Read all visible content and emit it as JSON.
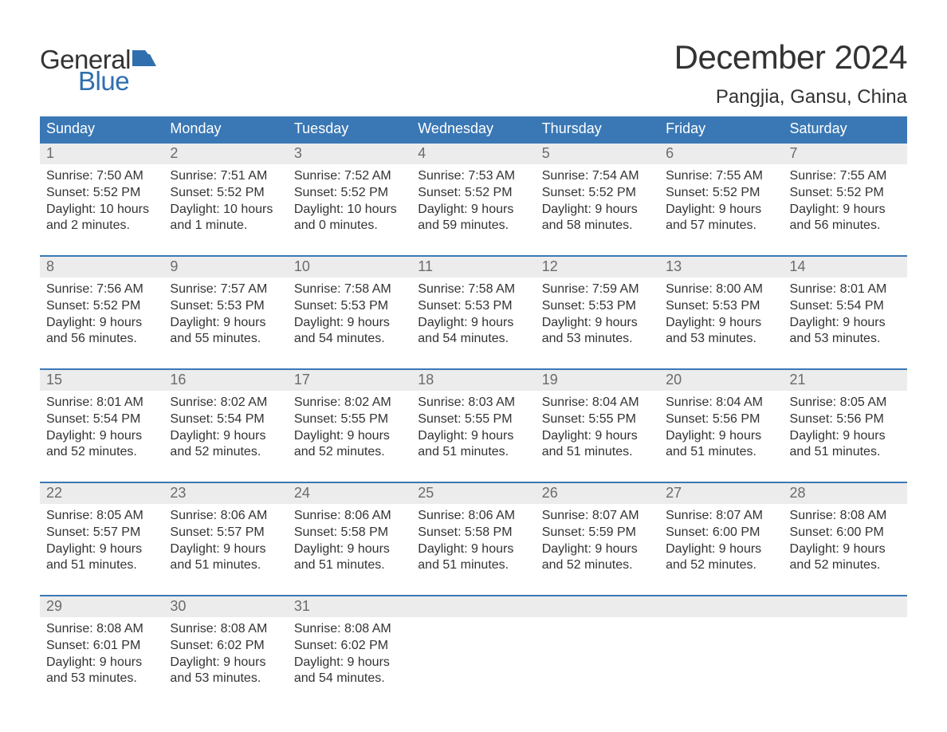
{
  "brand": {
    "word1": "General",
    "word2": "Blue",
    "flag_color": "#2f6fae",
    "text_dark": "#333333"
  },
  "title": "December 2024",
  "location": "Pangjia, Gansu, China",
  "colors": {
    "header_bg": "#3a78b5",
    "header_text": "#ffffff",
    "row_border": "#3a78b5",
    "daynum_bg": "#ececec",
    "daynum_text": "#6b6b6b",
    "body_text": "#333333",
    "page_bg": "#ffffff"
  },
  "typography": {
    "title_fontsize": 42,
    "location_fontsize": 24,
    "dayhead_fontsize": 18,
    "daynum_fontsize": 18,
    "body_fontsize": 16
  },
  "day_headers": [
    "Sunday",
    "Monday",
    "Tuesday",
    "Wednesday",
    "Thursday",
    "Friday",
    "Saturday"
  ],
  "weeks": [
    [
      {
        "num": "1",
        "sunrise": "Sunrise: 7:50 AM",
        "sunset": "Sunset: 5:52 PM",
        "day1": "Daylight: 10 hours",
        "day2": "and 2 minutes."
      },
      {
        "num": "2",
        "sunrise": "Sunrise: 7:51 AM",
        "sunset": "Sunset: 5:52 PM",
        "day1": "Daylight: 10 hours",
        "day2": "and 1 minute."
      },
      {
        "num": "3",
        "sunrise": "Sunrise: 7:52 AM",
        "sunset": "Sunset: 5:52 PM",
        "day1": "Daylight: 10 hours",
        "day2": "and 0 minutes."
      },
      {
        "num": "4",
        "sunrise": "Sunrise: 7:53 AM",
        "sunset": "Sunset: 5:52 PM",
        "day1": "Daylight: 9 hours",
        "day2": "and 59 minutes."
      },
      {
        "num": "5",
        "sunrise": "Sunrise: 7:54 AM",
        "sunset": "Sunset: 5:52 PM",
        "day1": "Daylight: 9 hours",
        "day2": "and 58 minutes."
      },
      {
        "num": "6",
        "sunrise": "Sunrise: 7:55 AM",
        "sunset": "Sunset: 5:52 PM",
        "day1": "Daylight: 9 hours",
        "day2": "and 57 minutes."
      },
      {
        "num": "7",
        "sunrise": "Sunrise: 7:55 AM",
        "sunset": "Sunset: 5:52 PM",
        "day1": "Daylight: 9 hours",
        "day2": "and 56 minutes."
      }
    ],
    [
      {
        "num": "8",
        "sunrise": "Sunrise: 7:56 AM",
        "sunset": "Sunset: 5:52 PM",
        "day1": "Daylight: 9 hours",
        "day2": "and 56 minutes."
      },
      {
        "num": "9",
        "sunrise": "Sunrise: 7:57 AM",
        "sunset": "Sunset: 5:53 PM",
        "day1": "Daylight: 9 hours",
        "day2": "and 55 minutes."
      },
      {
        "num": "10",
        "sunrise": "Sunrise: 7:58 AM",
        "sunset": "Sunset: 5:53 PM",
        "day1": "Daylight: 9 hours",
        "day2": "and 54 minutes."
      },
      {
        "num": "11",
        "sunrise": "Sunrise: 7:58 AM",
        "sunset": "Sunset: 5:53 PM",
        "day1": "Daylight: 9 hours",
        "day2": "and 54 minutes."
      },
      {
        "num": "12",
        "sunrise": "Sunrise: 7:59 AM",
        "sunset": "Sunset: 5:53 PM",
        "day1": "Daylight: 9 hours",
        "day2": "and 53 minutes."
      },
      {
        "num": "13",
        "sunrise": "Sunrise: 8:00 AM",
        "sunset": "Sunset: 5:53 PM",
        "day1": "Daylight: 9 hours",
        "day2": "and 53 minutes."
      },
      {
        "num": "14",
        "sunrise": "Sunrise: 8:01 AM",
        "sunset": "Sunset: 5:54 PM",
        "day1": "Daylight: 9 hours",
        "day2": "and 53 minutes."
      }
    ],
    [
      {
        "num": "15",
        "sunrise": "Sunrise: 8:01 AM",
        "sunset": "Sunset: 5:54 PM",
        "day1": "Daylight: 9 hours",
        "day2": "and 52 minutes."
      },
      {
        "num": "16",
        "sunrise": "Sunrise: 8:02 AM",
        "sunset": "Sunset: 5:54 PM",
        "day1": "Daylight: 9 hours",
        "day2": "and 52 minutes."
      },
      {
        "num": "17",
        "sunrise": "Sunrise: 8:02 AM",
        "sunset": "Sunset: 5:55 PM",
        "day1": "Daylight: 9 hours",
        "day2": "and 52 minutes."
      },
      {
        "num": "18",
        "sunrise": "Sunrise: 8:03 AM",
        "sunset": "Sunset: 5:55 PM",
        "day1": "Daylight: 9 hours",
        "day2": "and 51 minutes."
      },
      {
        "num": "19",
        "sunrise": "Sunrise: 8:04 AM",
        "sunset": "Sunset: 5:55 PM",
        "day1": "Daylight: 9 hours",
        "day2": "and 51 minutes."
      },
      {
        "num": "20",
        "sunrise": "Sunrise: 8:04 AM",
        "sunset": "Sunset: 5:56 PM",
        "day1": "Daylight: 9 hours",
        "day2": "and 51 minutes."
      },
      {
        "num": "21",
        "sunrise": "Sunrise: 8:05 AM",
        "sunset": "Sunset: 5:56 PM",
        "day1": "Daylight: 9 hours",
        "day2": "and 51 minutes."
      }
    ],
    [
      {
        "num": "22",
        "sunrise": "Sunrise: 8:05 AM",
        "sunset": "Sunset: 5:57 PM",
        "day1": "Daylight: 9 hours",
        "day2": "and 51 minutes."
      },
      {
        "num": "23",
        "sunrise": "Sunrise: 8:06 AM",
        "sunset": "Sunset: 5:57 PM",
        "day1": "Daylight: 9 hours",
        "day2": "and 51 minutes."
      },
      {
        "num": "24",
        "sunrise": "Sunrise: 8:06 AM",
        "sunset": "Sunset: 5:58 PM",
        "day1": "Daylight: 9 hours",
        "day2": "and 51 minutes."
      },
      {
        "num": "25",
        "sunrise": "Sunrise: 8:06 AM",
        "sunset": "Sunset: 5:58 PM",
        "day1": "Daylight: 9 hours",
        "day2": "and 51 minutes."
      },
      {
        "num": "26",
        "sunrise": "Sunrise: 8:07 AM",
        "sunset": "Sunset: 5:59 PM",
        "day1": "Daylight: 9 hours",
        "day2": "and 52 minutes."
      },
      {
        "num": "27",
        "sunrise": "Sunrise: 8:07 AM",
        "sunset": "Sunset: 6:00 PM",
        "day1": "Daylight: 9 hours",
        "day2": "and 52 minutes."
      },
      {
        "num": "28",
        "sunrise": "Sunrise: 8:08 AM",
        "sunset": "Sunset: 6:00 PM",
        "day1": "Daylight: 9 hours",
        "day2": "and 52 minutes."
      }
    ],
    [
      {
        "num": "29",
        "sunrise": "Sunrise: 8:08 AM",
        "sunset": "Sunset: 6:01 PM",
        "day1": "Daylight: 9 hours",
        "day2": "and 53 minutes."
      },
      {
        "num": "30",
        "sunrise": "Sunrise: 8:08 AM",
        "sunset": "Sunset: 6:02 PM",
        "day1": "Daylight: 9 hours",
        "day2": "and 53 minutes."
      },
      {
        "num": "31",
        "sunrise": "Sunrise: 8:08 AM",
        "sunset": "Sunset: 6:02 PM",
        "day1": "Daylight: 9 hours",
        "day2": "and 54 minutes."
      },
      {
        "empty": true
      },
      {
        "empty": true
      },
      {
        "empty": true
      },
      {
        "empty": true
      }
    ]
  ]
}
